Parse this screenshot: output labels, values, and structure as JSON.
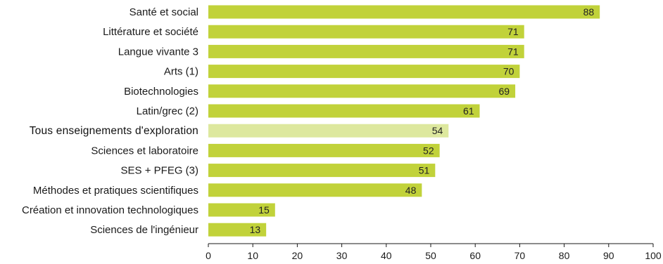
{
  "chart_data": {
    "type": "bar",
    "orientation": "horizontal",
    "categories": [
      "Santé et social",
      "Littérature et société",
      "Langue vivante 3",
      "Arts (1)",
      "Biotechnologies",
      "Latin/grec (2)",
      "Tous enseignements d'exploration",
      "Sciences et laboratoire",
      "SES + PFEG (3)",
      "Méthodes et pratiques scientifiques",
      "Création et innovation technologiques",
      "Sciences de l'ingénieur"
    ],
    "values": [
      88,
      71,
      71,
      70,
      69,
      61,
      54,
      52,
      51,
      48,
      15,
      13
    ],
    "value_labels": [
      "88",
      "71",
      "71",
      "70",
      "69",
      "61",
      "54",
      "52",
      "51",
      "48",
      "15",
      "13"
    ],
    "highlight_index": 6,
    "xlim": [
      0,
      100
    ],
    "xticks": [
      0,
      10,
      20,
      30,
      40,
      50,
      60,
      70,
      80,
      90,
      100
    ],
    "tick_labels": [
      "0",
      "10",
      "20",
      "30",
      "40",
      "50",
      "60",
      "70",
      "80",
      "90",
      "100"
    ],
    "grid": false,
    "title": "",
    "xlabel": "",
    "ylabel": "",
    "colors": {
      "bar": "#c1d23a",
      "highlight_bar": "#dde89e",
      "axis": "#1a1a1a"
    }
  }
}
